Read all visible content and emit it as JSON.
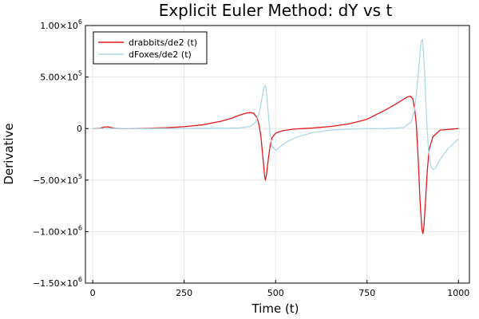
{
  "chart_data": {
    "type": "line",
    "title": "Explicit Euler Method: dY vs t",
    "xlabel": "Time (t)",
    "ylabel": "Derivative",
    "xlim": [
      -20,
      1030
    ],
    "ylim": [
      -1500000,
      1000000
    ],
    "x_ticks": [
      0,
      250,
      500,
      750,
      1000
    ],
    "x_tick_labels": [
      "0",
      "250",
      "500",
      "750",
      "1000"
    ],
    "y_ticks": [
      -1500000,
      -1000000,
      -500000,
      0,
      500000,
      1000000
    ],
    "y_tick_labels": [
      {
        "mantissa": "−1.50×10",
        "exp": "6"
      },
      {
        "mantissa": "−1.00×10",
        "exp": "6"
      },
      {
        "mantissa": "−5.00×10",
        "exp": "5"
      },
      {
        "mantissa": "0",
        "exp": ""
      },
      {
        "mantissa": "5.00×10",
        "exp": "5"
      },
      {
        "mantissa": "1.00×10",
        "exp": "6"
      }
    ],
    "grid": true,
    "legend_position": "top-left",
    "series": [
      {
        "name": "drabbits/de2 (t)",
        "color": "#e31a1c",
        "x": [
          0,
          20,
          30,
          40,
          50,
          60,
          80,
          100,
          150,
          200,
          250,
          300,
          350,
          380,
          400,
          420,
          430,
          440,
          450,
          455,
          460,
          465,
          470,
          472,
          475,
          480,
          485,
          490,
          500,
          520,
          550,
          600,
          650,
          700,
          750,
          800,
          830,
          850,
          860,
          868,
          875,
          880,
          885,
          890,
          895,
          900,
          903,
          906,
          910,
          915,
          920,
          930,
          950,
          1000
        ],
        "y": [
          0,
          3000,
          14000,
          17000,
          10000,
          3000,
          0,
          0,
          3000,
          8000,
          18000,
          36000,
          70000,
          100000,
          128000,
          150000,
          155000,
          150000,
          100000,
          30000,
          -80000,
          -270000,
          -460000,
          -500000,
          -450000,
          -300000,
          -170000,
          -90000,
          -45000,
          -20000,
          -5000,
          5000,
          20000,
          45000,
          90000,
          180000,
          240000,
          285000,
          305000,
          315000,
          290000,
          200000,
          30000,
          -300000,
          -700000,
          -980000,
          -1020000,
          -930000,
          -700000,
          -400000,
          -200000,
          -80000,
          -15000,
          0
        ]
      },
      {
        "name": "dFoxes/de2 (t)",
        "color": "#add8e6",
        "x": [
          0,
          50,
          100,
          200,
          300,
          400,
          430,
          445,
          455,
          462,
          468,
          472,
          476,
          480,
          485,
          490,
          500,
          505,
          515,
          530,
          560,
          600,
          650,
          700,
          750,
          800,
          850,
          870,
          880,
          887,
          893,
          898,
          901,
          904,
          908,
          912,
          918,
          925,
          932,
          938,
          950,
          970,
          1000
        ],
        "y": [
          0,
          1000,
          0,
          0,
          2000,
          6000,
          20000,
          60000,
          150000,
          280000,
          400000,
          420000,
          330000,
          150000,
          -50000,
          -170000,
          -210000,
          -200000,
          -170000,
          -130000,
          -80000,
          -40000,
          -15000,
          -5000,
          -1000,
          0,
          10000,
          60000,
          180000,
          400000,
          650000,
          840000,
          865000,
          780000,
          500000,
          150000,
          -200000,
          -370000,
          -400000,
          -380000,
          -300000,
          -200000,
          -100000
        ]
      }
    ]
  }
}
